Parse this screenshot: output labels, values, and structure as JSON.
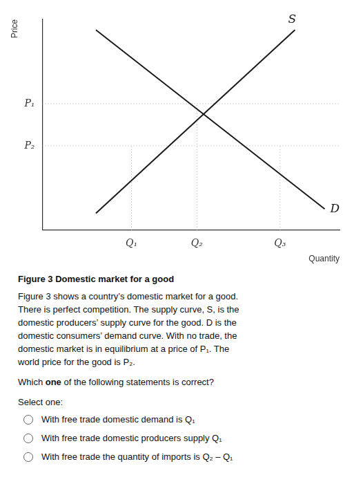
{
  "chart_data": {
    "type": "line",
    "x_label": "Quantity",
    "y_label": "Price",
    "xlim": [
      0,
      10
    ],
    "ylim": [
      0,
      10
    ],
    "xticks": [
      {
        "value": 3.0,
        "label": "Q₁"
      },
      {
        "value": 5.2,
        "label": "Q₂"
      },
      {
        "value": 8.0,
        "label": "Q₃"
      }
    ],
    "yticks": [
      {
        "value": 6.0,
        "label": "P₁"
      },
      {
        "value": 4.0,
        "label": "P₂"
      }
    ],
    "grid": false,
    "series": [
      {
        "name": "S",
        "x": [
          1.8,
          8.5
        ],
        "values": [
          0.8,
          9.5
        ],
        "color": "#1a1a1a"
      },
      {
        "name": "D",
        "x": [
          1.8,
          9.5
        ],
        "values": [
          9.5,
          1.0
        ],
        "color": "#1a1a1a"
      },
      {
        "x": [
          0,
          10
        ],
        "values": [
          6.0,
          6.0
        ],
        "color": "#aaaaaa",
        "line_style": "dotted"
      },
      {
        "x": [
          5.2,
          5.2
        ],
        "values": [
          0,
          6.0
        ],
        "color": "#aaaaaa",
        "line_style": "dotted"
      },
      {
        "x": [
          0,
          10
        ],
        "values": [
          4.0,
          4.0
        ],
        "color": "#aaaaaa",
        "line_style": "dotted"
      },
      {
        "x": [
          3.0,
          3.0
        ],
        "values": [
          0,
          4.0
        ],
        "color": "#aaaaaa",
        "line_style": "dotted"
      },
      {
        "x": [
          8.0,
          8.0
        ],
        "values": [
          0,
          4.0
        ],
        "color": "#aaaaaa",
        "line_style": "dotted"
      }
    ],
    "caption": "Figure 3 Domestic market for a good",
    "body": [
      "Figure 3 shows a country’s domestic market for a good.",
      "There is perfect competition. The supply curve,  S, is the",
      "domestic producers’ supply curve for the good.  D is the",
      "domestic consumers’ demand curve. With no trade, the",
      "domestic market is in equilibrium at a price of P₁. The",
      "world price for the good is P₂."
    ],
    "question": [
      "Which ",
      "one",
      " of the following statements is correct?"
    ],
    "prompt": "Select one:",
    "options": [
      "With free trade domestic demand is Q₁",
      "With free trade domestic producers supply Q₁",
      "With free trade the quantity of imports is Q₂ – Q₁"
    ]
  }
}
